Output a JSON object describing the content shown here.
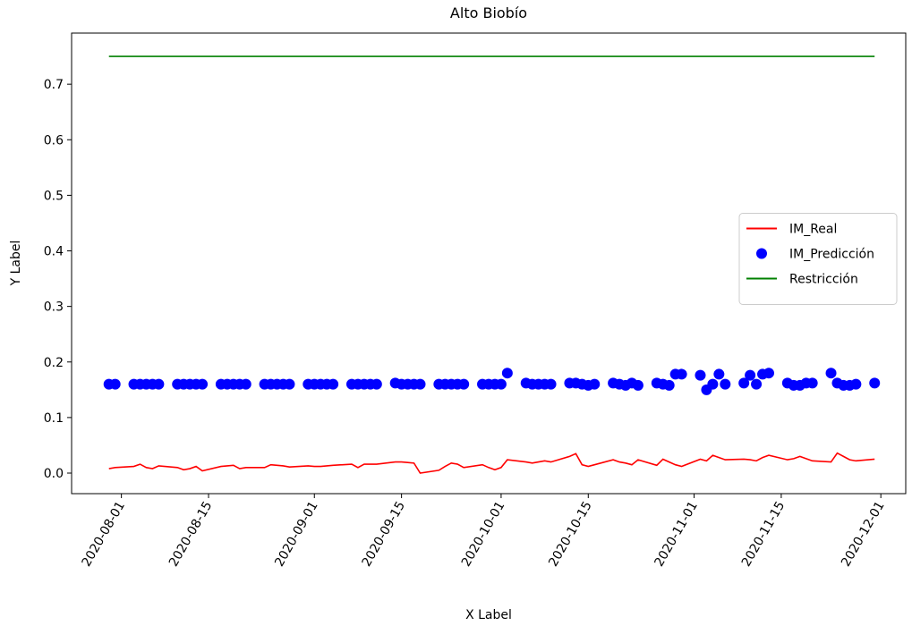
{
  "chart_data": {
    "type": "line",
    "title": "Alto Biobío",
    "x_label": "X Label",
    "y_label": "Y Label",
    "x": [
      "2020-07-30",
      "2020-07-31",
      "2020-08-03",
      "2020-08-04",
      "2020-08-05",
      "2020-08-06",
      "2020-08-07",
      "2020-08-10",
      "2020-08-11",
      "2020-08-12",
      "2020-08-13",
      "2020-08-14",
      "2020-08-17",
      "2020-08-18",
      "2020-08-19",
      "2020-08-20",
      "2020-08-21",
      "2020-08-24",
      "2020-08-25",
      "2020-08-26",
      "2020-08-27",
      "2020-08-28",
      "2020-08-31",
      "2020-09-01",
      "2020-09-02",
      "2020-09-03",
      "2020-09-04",
      "2020-09-07",
      "2020-09-08",
      "2020-09-09",
      "2020-09-10",
      "2020-09-11",
      "2020-09-14",
      "2020-09-15",
      "2020-09-16",
      "2020-09-17",
      "2020-09-18",
      "2020-09-21",
      "2020-09-22",
      "2020-09-23",
      "2020-09-24",
      "2020-09-25",
      "2020-09-28",
      "2020-09-29",
      "2020-09-30",
      "2020-10-01",
      "2020-10-02",
      "2020-10-05",
      "2020-10-06",
      "2020-10-07",
      "2020-10-08",
      "2020-10-09",
      "2020-10-12",
      "2020-10-13",
      "2020-10-14",
      "2020-10-15",
      "2020-10-16",
      "2020-10-19",
      "2020-10-20",
      "2020-10-21",
      "2020-10-22",
      "2020-10-23",
      "2020-10-26",
      "2020-10-27",
      "2020-10-28",
      "2020-10-29",
      "2020-10-30",
      "2020-11-02",
      "2020-11-03",
      "2020-11-04",
      "2020-11-05",
      "2020-11-06",
      "2020-11-09",
      "2020-11-10",
      "2020-11-11",
      "2020-11-12",
      "2020-11-13",
      "2020-11-16",
      "2020-11-17",
      "2020-11-18",
      "2020-11-19",
      "2020-11-20",
      "2020-11-23",
      "2020-11-24",
      "2020-11-25",
      "2020-11-26",
      "2020-11-27",
      "2020-11-30"
    ],
    "series": [
      {
        "name": "IM_Real",
        "kind": "line",
        "color": "#ff0000",
        "values": [
          0.008,
          0.01,
          0.012,
          0.016,
          0.01,
          0.008,
          0.013,
          0.01,
          0.006,
          0.008,
          0.012,
          0.004,
          0.012,
          0.013,
          0.014,
          0.008,
          0.01,
          0.01,
          0.015,
          0.014,
          0.013,
          0.011,
          0.013,
          0.012,
          0.012,
          0.013,
          0.014,
          0.016,
          0.01,
          0.016,
          0.016,
          0.016,
          0.02,
          0.02,
          0.019,
          0.018,
          0.0,
          0.005,
          0.012,
          0.018,
          0.016,
          0.01,
          0.015,
          0.01,
          0.006,
          0.01,
          0.024,
          0.02,
          0.018,
          0.02,
          0.022,
          0.02,
          0.03,
          0.035,
          0.015,
          0.012,
          0.015,
          0.024,
          0.02,
          0.018,
          0.015,
          0.024,
          0.014,
          0.025,
          0.02,
          0.015,
          0.012,
          0.025,
          0.022,
          0.032,
          0.028,
          0.024,
          0.025,
          0.024,
          0.022,
          0.028,
          0.032,
          0.024,
          0.026,
          0.03,
          0.026,
          0.022,
          0.02,
          0.036,
          0.03,
          0.024,
          0.022,
          0.025
        ]
      },
      {
        "name": "IM_Predicción",
        "kind": "scatter",
        "color": "#0000ff",
        "values": [
          0.16,
          0.16,
          0.16,
          0.16,
          0.16,
          0.16,
          0.16,
          0.16,
          0.16,
          0.16,
          0.16,
          0.16,
          0.16,
          0.16,
          0.16,
          0.16,
          0.16,
          0.16,
          0.16,
          0.16,
          0.16,
          0.16,
          0.16,
          0.16,
          0.16,
          0.16,
          0.16,
          0.16,
          0.16,
          0.16,
          0.16,
          0.16,
          0.162,
          0.16,
          0.16,
          0.16,
          0.16,
          0.16,
          0.16,
          0.16,
          0.16,
          0.16,
          0.16,
          0.16,
          0.16,
          0.16,
          0.18,
          0.162,
          0.16,
          0.16,
          0.16,
          0.16,
          0.162,
          0.162,
          0.16,
          0.158,
          0.16,
          0.162,
          0.16,
          0.158,
          0.162,
          0.158,
          0.162,
          0.16,
          0.158,
          0.178,
          0.178,
          0.176,
          0.15,
          0.16,
          0.178,
          0.16,
          0.162,
          0.176,
          0.16,
          0.178,
          0.18,
          0.162,
          0.158,
          0.158,
          0.162,
          0.162,
          0.18,
          0.162,
          0.158,
          0.158,
          0.16,
          0.162
        ]
      },
      {
        "name": "Restricción",
        "kind": "line",
        "color": "#008000",
        "x": [
          "2020-07-30",
          "2020-11-30"
        ],
        "values": [
          0.75,
          0.75
        ]
      }
    ],
    "xlim": [
      "2020-07-24",
      "2020-12-05"
    ],
    "xticks": [
      "2020-08-01",
      "2020-08-15",
      "2020-09-01",
      "2020-09-15",
      "2020-10-01",
      "2020-10-15",
      "2020-11-01",
      "2020-11-15",
      "2020-12-01"
    ],
    "ylim": [
      -0.037,
      0.792
    ],
    "yticks": [
      {
        "value": 0,
        "label": "0.0"
      },
      0.1,
      0.2,
      0.3,
      0.4,
      0.5,
      0.6,
      0.7
    ],
    "legend": "center right"
  }
}
